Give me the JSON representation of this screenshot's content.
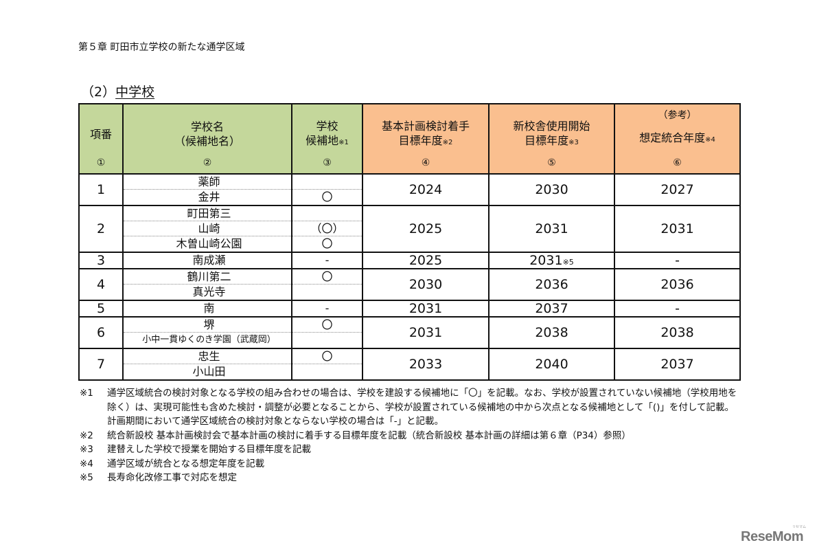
{
  "chapter_title": "第５章 町田市立学校の新たな通学区域",
  "section_title": {
    "prefix": "（2）",
    "label": "中学校"
  },
  "table": {
    "headers": [
      {
        "line1": "項番",
        "line2": "",
        "note": "",
        "top": "",
        "num": "①"
      },
      {
        "line1": "学校名",
        "line2": "（候補地名）",
        "note": "",
        "top": "",
        "num": "②"
      },
      {
        "line1": "学校",
        "line2": "候補地",
        "note": "※1",
        "top": "",
        "num": "③"
      },
      {
        "line1": "基本計画検討着手",
        "line2": "目標年度",
        "note": "※2",
        "top": "",
        "num": "④"
      },
      {
        "line1": "新校舎使用開始",
        "line2": "目標年度",
        "note": "※3",
        "top": "",
        "num": "⑤"
      },
      {
        "line1": "想定統合年度",
        "line2": "",
        "note": "※4",
        "top": "（参考）",
        "num": "⑥"
      }
    ],
    "rows": [
      {
        "no": "1",
        "schools": [
          {
            "name": "薬師",
            "candidate": ""
          },
          {
            "name": "金井",
            "candidate": "〇"
          }
        ],
        "plan_start": "2024",
        "new_building": "2030",
        "new_building_note": "",
        "merge_year": "2027"
      },
      {
        "no": "2",
        "schools": [
          {
            "name": "町田第三",
            "candidate": ""
          },
          {
            "name": "山崎",
            "candidate": "（〇）"
          },
          {
            "name": "木曽山崎公園",
            "candidate": "〇"
          }
        ],
        "plan_start": "2025",
        "new_building": "2031",
        "new_building_note": "",
        "merge_year": "2031"
      },
      {
        "no": "3",
        "schools": [
          {
            "name": "南成瀬",
            "candidate": "-"
          }
        ],
        "plan_start": "2025",
        "new_building": "2031",
        "new_building_note": "※5",
        "merge_year": "-"
      },
      {
        "no": "4",
        "schools": [
          {
            "name": "鶴川第二",
            "candidate": "〇"
          },
          {
            "name": "真光寺",
            "candidate": ""
          }
        ],
        "plan_start": "2030",
        "new_building": "2036",
        "new_building_note": "",
        "merge_year": "2036"
      },
      {
        "no": "5",
        "schools": [
          {
            "name": "南",
            "candidate": "-"
          }
        ],
        "plan_start": "2031",
        "new_building": "2037",
        "new_building_note": "",
        "merge_year": "-"
      },
      {
        "no": "6",
        "schools": [
          {
            "name": "堺",
            "candidate": "〇"
          },
          {
            "name": "小中一貫ゆくのき学園（武蔵岡）",
            "candidate": ""
          }
        ],
        "plan_start": "2031",
        "new_building": "2038",
        "new_building_note": "",
        "merge_year": "2038"
      },
      {
        "no": "7",
        "schools": [
          {
            "name": "忠生",
            "candidate": "〇"
          },
          {
            "name": "小山田",
            "candidate": ""
          }
        ],
        "plan_start": "2033",
        "new_building": "2040",
        "new_building_note": "",
        "merge_year": "2037"
      }
    ]
  },
  "notes": [
    {
      "key": "※1",
      "text": "通学区域統合の検討対象となる学校の組み合わせの場合は、学校を建設する候補地に「〇」を記載。なお、学校が設置されていない候補地（学校用地を除く）は、実現可能性も含めた検討・調整が必要となることから、学校が設置されている候補地の中から次点となる候補地として「()」を付して記載。計画期間において通学区域統合の検討対象とならない学校の場合は「-」と記載。"
    },
    {
      "key": "※2",
      "text": "統合新設校 基本計画検討会で基本計画の検討に着手する目標年度を記載（統合新設校 基本計画の詳細は第６章（P34）参照）"
    },
    {
      "key": "※3",
      "text": "建替えした学校で授業を開始する目標年度を記載"
    },
    {
      "key": "※4",
      "text": "通学区域が統合となる想定年度を記載"
    },
    {
      "key": "※5",
      "text": "長寿命化改修工事で対応を想定"
    }
  ],
  "watermark": {
    "text": "ReseMom",
    "ruby": "リセマム"
  },
  "colors": {
    "header_green": "#c4d79b",
    "header_orange": "#fabf8f"
  }
}
